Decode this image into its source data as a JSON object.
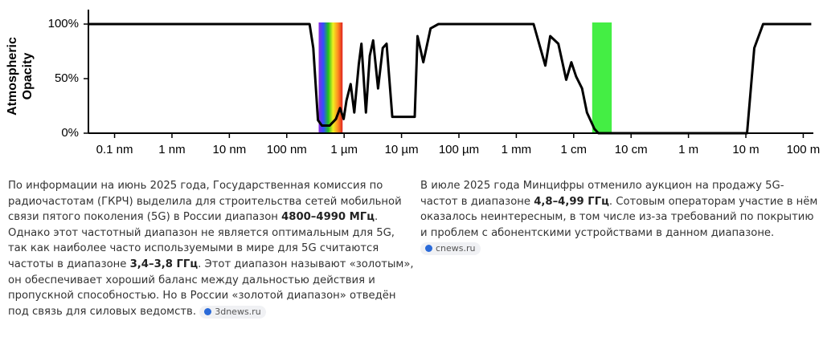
{
  "chart_data": {
    "type": "line",
    "log_x": true,
    "y_label_lines": [
      "Atmospheric",
      "Opacity"
    ],
    "x": [
      3.5e-11,
      2.5e-07,
      2.9e-07,
      3.5e-07,
      4.1e-07,
      5.6e-07,
      7.2e-07,
      8.5e-07,
      9.8e-07,
      1.1e-06,
      1.3e-06,
      1.5e-06,
      1.8e-06,
      2e-06,
      2.4e-06,
      2.8e-06,
      3.2e-06,
      3.9e-06,
      4.7e-06,
      5.5e-06,
      6.9e-06,
      1.7e-05,
      1.9e-05,
      2.4e-05,
      3.2e-05,
      4.4e-05,
      0.002,
      0.0032,
      0.0039,
      0.0054,
      0.0074,
      0.0091,
      0.011,
      0.014,
      0.017,
      0.023,
      0.027,
      10.5,
      14,
      20,
      138
    ],
    "series": [
      {
        "color": "#000000",
        "values": [
          100,
          100,
          78,
          12,
          7,
          7,
          13,
          23,
          13,
          30,
          45,
          19,
          63,
          82,
          19,
          71,
          85,
          41,
          78,
          82,
          15,
          15,
          89,
          65,
          96,
          100,
          100,
          62,
          89,
          82,
          49,
          65,
          52,
          41,
          19,
          4,
          0,
          0,
          78,
          100,
          100
        ]
      }
    ],
    "bands": [
      {
        "x": [
          3.6e-07,
          9.4e-07
        ],
        "style": "spectrum"
      },
      {
        "x": [
          0.021,
          0.046
        ],
        "style": "solid",
        "color": "#44ee44"
      }
    ],
    "xlim": [
      3.5e-11,
      150
    ],
    "xticks": [
      {
        "value": 1e-10,
        "label": "0.1 nm"
      },
      {
        "value": 1e-09,
        "label": "1 nm"
      },
      {
        "value": 1e-08,
        "label": "10 nm"
      },
      {
        "value": 1e-07,
        "label": "100 nm"
      },
      {
        "value": 1e-06,
        "label": "1 µm"
      },
      {
        "value": 1e-05,
        "label": "10 µm"
      },
      {
        "value": 0.0001,
        "label": "100 µm"
      },
      {
        "value": 0.001,
        "label": "1 mm"
      },
      {
        "value": 0.01,
        "label": "1 cm"
      },
      {
        "value": 0.1,
        "label": "10 cm"
      },
      {
        "value": 1,
        "label": "1 m"
      },
      {
        "value": 10,
        "label": "10 m"
      },
      {
        "value": 100,
        "label": "100 m"
      }
    ],
    "ylim": [
      0,
      100
    ],
    "yticks": [
      {
        "value": 0,
        "label": "0%"
      },
      {
        "value": 50,
        "label": "50%"
      },
      {
        "value": 100,
        "label": "100%"
      }
    ]
  },
  "left": {
    "runs": [
      {
        "text": "По информации на июнь 2025 года, Государственная комиссия по радиочастотам (ГКРЧ) выделила для строительства сетей мобильной связи пятого поколения (5G) в России диапазон ",
        "bold": false
      },
      {
        "text": "4800–4990 МГц",
        "bold": true
      },
      {
        "text": ". Однако этот частотный диапазон не является оптимальным для 5G, так как наиболее часто используемыми в мире для 5G считаются частоты в диапазоне ",
        "bold": false
      },
      {
        "text": "3,4–3,8 ГГц",
        "bold": true
      },
      {
        "text": ". Этот диапазон называют «золотым», он обеспечивает хороший баланс между дальностью действия и пропускной способностью. Но в России «золотой диапазон» отведён под связь для силовых ведомств.",
        "bold": false
      }
    ],
    "source": "3dnews.ru"
  },
  "right": {
    "runs": [
      {
        "text": "В июле 2025 года Минцифры отменило аукцион на продажу 5G-частот в диапазоне ",
        "bold": false
      },
      {
        "text": "4,8–4,99 ГГц",
        "bold": true
      },
      {
        "text": ". Сотовым операторам участие в нём оказалось неинтересным, в том числе из-за требований по покрытию и проблем с абонентскими устройствами в данном диапазоне.",
        "bold": false
      }
    ],
    "source": "cnews.ru"
  }
}
